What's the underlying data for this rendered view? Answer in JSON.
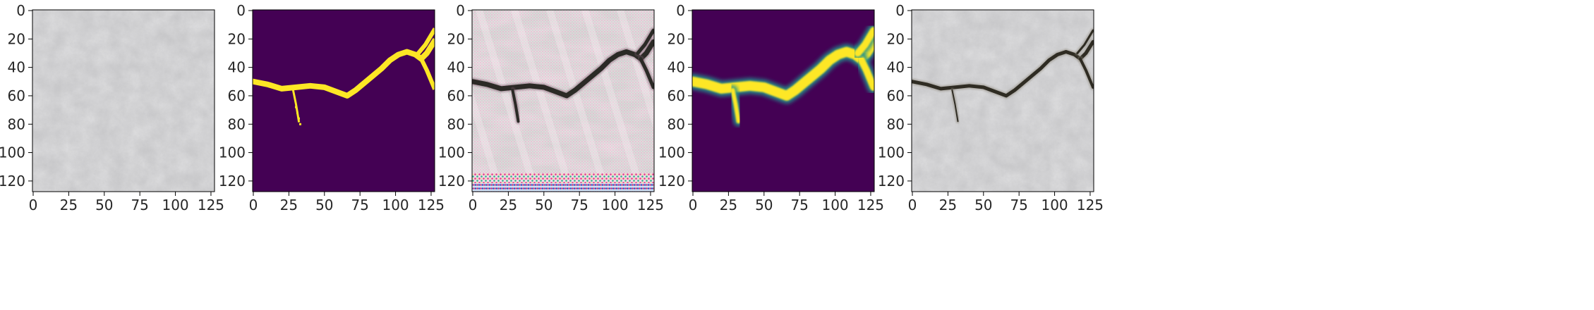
{
  "chart_data": [
    {
      "type": "image",
      "content": "concrete-texture-no-crack",
      "colors": {
        "base": "#c9c9cb"
      },
      "xlim": [
        0,
        127
      ],
      "ylim": [
        127,
        0
      ],
      "xticks": [
        0,
        25,
        50,
        75,
        100,
        125
      ],
      "yticks": [
        0,
        20,
        40,
        60,
        80,
        100,
        120
      ]
    },
    {
      "type": "heatmap",
      "content": "binary-crack-mask",
      "colors": {
        "background": "#440154",
        "foreground": "#fde725",
        "mid": "#21918c"
      },
      "xlim": [
        0,
        127
      ],
      "ylim": [
        127,
        0
      ],
      "xticks": [
        0,
        25,
        50,
        75,
        100,
        125
      ],
      "yticks": [
        0,
        20,
        40,
        60,
        80,
        100,
        120
      ]
    },
    {
      "type": "image",
      "content": "generated-crack-image-with-artifacts",
      "colors": {
        "base": "#dcd6d8",
        "crack": "#2b2a26"
      },
      "xlim": [
        0,
        127
      ],
      "ylim": [
        127,
        0
      ],
      "xticks": [
        0,
        25,
        50,
        75,
        100,
        125
      ],
      "yticks": [
        0,
        20,
        40,
        60,
        80,
        100,
        120
      ]
    },
    {
      "type": "heatmap",
      "content": "blurred-crack-mask",
      "colors": {
        "background": "#440154",
        "foreground": "#fde725",
        "mid": "#21918c"
      },
      "xlim": [
        0,
        127
      ],
      "ylim": [
        127,
        0
      ],
      "xticks": [
        0,
        25,
        50,
        75,
        100,
        125
      ],
      "yticks": [
        0,
        20,
        40,
        60,
        80,
        100,
        120
      ]
    },
    {
      "type": "image",
      "content": "concrete-texture-with-crack",
      "colors": {
        "base": "#c9c9cb",
        "crack": "#2f2c23"
      },
      "xlim": [
        0,
        127
      ],
      "ylim": [
        127,
        0
      ],
      "xticks": [
        0,
        25,
        50,
        75,
        100,
        125
      ],
      "yticks": [
        0,
        20,
        40,
        60,
        80,
        100,
        120
      ]
    }
  ]
}
